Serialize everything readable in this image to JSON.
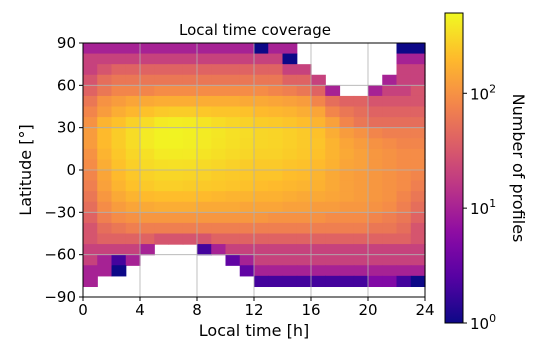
{
  "chart_data": {
    "type": "heatmap",
    "title": "Local time coverage",
    "xlabel": "Local time [h]",
    "ylabel": "Latitude [°]",
    "xlim": [
      0,
      24
    ],
    "ylim": [
      -90,
      90
    ],
    "xticks": [
      "0",
      "4",
      "8",
      "12",
      "16",
      "20",
      "24"
    ],
    "xtick_values": [
      0,
      4,
      8,
      12,
      16,
      20,
      24
    ],
    "yticks": [
      "90",
      "60",
      "30",
      "0",
      "−30",
      "−60",
      "−90"
    ],
    "ytick_values": [
      90,
      60,
      30,
      0,
      -30,
      -60,
      -90
    ],
    "grid": true,
    "colormap": "plasma",
    "colorbar": {
      "label": "Number of profiles",
      "scale": "log",
      "range": [
        1,
        500
      ],
      "ticks": [
        {
          "base": "10",
          "exp": "0",
          "value": 1
        },
        {
          "base": "10",
          "exp": "1",
          "value": 10
        },
        {
          "base": "10",
          "exp": "2",
          "value": 100
        }
      ]
    },
    "x_bin_edges_hours": [
      0,
      24
    ],
    "x_bins": 24,
    "y_bin_edges_deg": [
      -90,
      90
    ],
    "y_bins": 24,
    "row_order": "north_to_south",
    "values": [
      [
        10,
        10,
        10,
        10,
        10,
        10,
        10,
        10,
        10,
        10,
        10,
        10,
        1,
        10,
        10,
        null,
        null,
        null,
        null,
        null,
        null,
        null,
        1,
        1
      ],
      [
        20,
        20,
        20,
        20,
        20,
        20,
        20,
        20,
        20,
        20,
        20,
        20,
        20,
        20,
        1,
        null,
        null,
        null,
        null,
        null,
        null,
        null,
        10,
        10
      ],
      [
        20,
        30,
        40,
        40,
        40,
        40,
        40,
        40,
        40,
        40,
        40,
        40,
        40,
        40,
        20,
        20,
        null,
        null,
        null,
        null,
        null,
        null,
        20,
        20
      ],
      [
        30,
        50,
        60,
        60,
        60,
        60,
        60,
        60,
        60,
        60,
        60,
        60,
        60,
        60,
        40,
        40,
        20,
        null,
        null,
        null,
        null,
        10,
        20,
        20
      ],
      [
        40,
        60,
        80,
        80,
        80,
        90,
        90,
        90,
        90,
        90,
        90,
        90,
        90,
        80,
        70,
        60,
        40,
        10,
        null,
        null,
        10,
        20,
        20,
        30
      ],
      [
        60,
        100,
        120,
        140,
        150,
        160,
        160,
        160,
        160,
        160,
        160,
        150,
        150,
        140,
        130,
        120,
        80,
        50,
        40,
        40,
        30,
        30,
        30,
        30
      ],
      [
        80,
        120,
        160,
        190,
        220,
        250,
        260,
        260,
        240,
        230,
        230,
        220,
        200,
        190,
        180,
        160,
        140,
        80,
        60,
        50,
        40,
        40,
        40,
        40
      ],
      [
        100,
        180,
        220,
        280,
        330,
        400,
        420,
        410,
        370,
        330,
        300,
        280,
        260,
        250,
        230,
        210,
        180,
        130,
        80,
        60,
        50,
        50,
        50,
        50
      ],
      [
        120,
        200,
        260,
        330,
        400,
        450,
        460,
        440,
        410,
        380,
        350,
        330,
        300,
        290,
        270,
        250,
        220,
        160,
        120,
        100,
        80,
        70,
        70,
        70
      ],
      [
        120,
        200,
        260,
        330,
        400,
        450,
        450,
        430,
        400,
        370,
        340,
        320,
        300,
        290,
        270,
        250,
        230,
        180,
        140,
        120,
        100,
        90,
        80,
        80
      ],
      [
        100,
        180,
        240,
        300,
        350,
        400,
        410,
        400,
        370,
        340,
        320,
        300,
        280,
        280,
        260,
        240,
        220,
        180,
        150,
        130,
        110,
        100,
        90,
        90
      ],
      [
        90,
        160,
        220,
        270,
        320,
        340,
        350,
        340,
        320,
        300,
        280,
        260,
        250,
        250,
        230,
        220,
        200,
        170,
        140,
        130,
        110,
        100,
        90,
        90
      ],
      [
        80,
        140,
        200,
        240,
        280,
        300,
        300,
        290,
        280,
        260,
        250,
        240,
        230,
        230,
        210,
        200,
        180,
        150,
        130,
        120,
        110,
        100,
        90,
        80
      ],
      [
        70,
        130,
        180,
        220,
        250,
        270,
        270,
        260,
        250,
        240,
        230,
        220,
        210,
        200,
        190,
        180,
        170,
        150,
        130,
        120,
        110,
        100,
        90,
        70
      ],
      [
        60,
        110,
        150,
        180,
        200,
        210,
        210,
        210,
        200,
        190,
        180,
        180,
        170,
        170,
        160,
        150,
        150,
        140,
        130,
        120,
        110,
        100,
        80,
        60
      ],
      [
        50,
        90,
        120,
        140,
        150,
        160,
        160,
        160,
        150,
        150,
        150,
        140,
        140,
        140,
        130,
        130,
        120,
        120,
        110,
        110,
        100,
        90,
        70,
        50
      ],
      [
        40,
        70,
        90,
        100,
        110,
        110,
        110,
        110,
        110,
        110,
        110,
        110,
        110,
        100,
        100,
        100,
        100,
        90,
        90,
        90,
        80,
        70,
        60,
        40
      ],
      [
        30,
        50,
        60,
        70,
        70,
        70,
        70,
        70,
        70,
        70,
        70,
        70,
        70,
        70,
        70,
        70,
        70,
        70,
        70,
        70,
        60,
        60,
        50,
        30
      ],
      [
        30,
        40,
        40,
        40,
        40,
        30,
        30,
        30,
        30,
        40,
        40,
        40,
        40,
        40,
        40,
        40,
        40,
        40,
        40,
        40,
        40,
        40,
        40,
        30
      ],
      [
        20,
        20,
        20,
        20,
        10,
        null,
        null,
        null,
        2,
        10,
        20,
        20,
        20,
        20,
        20,
        20,
        20,
        20,
        20,
        20,
        20,
        20,
        20,
        20
      ],
      [
        20,
        10,
        2,
        10,
        null,
        null,
        null,
        null,
        null,
        null,
        3,
        10,
        20,
        20,
        20,
        20,
        20,
        20,
        20,
        20,
        20,
        20,
        20,
        20
      ],
      [
        10,
        10,
        1,
        null,
        null,
        null,
        null,
        null,
        null,
        null,
        null,
        3,
        10,
        10,
        10,
        10,
        10,
        10,
        10,
        10,
        10,
        10,
        10,
        10
      ],
      [
        10,
        null,
        null,
        null,
        null,
        null,
        null,
        null,
        null,
        null,
        null,
        null,
        2,
        2,
        2,
        2,
        2,
        2,
        2,
        2,
        5,
        5,
        2,
        1
      ],
      [
        null,
        null,
        null,
        null,
        null,
        null,
        null,
        null,
        null,
        null,
        null,
        null,
        null,
        null,
        null,
        null,
        null,
        null,
        null,
        null,
        null,
        null,
        null,
        null
      ]
    ]
  }
}
